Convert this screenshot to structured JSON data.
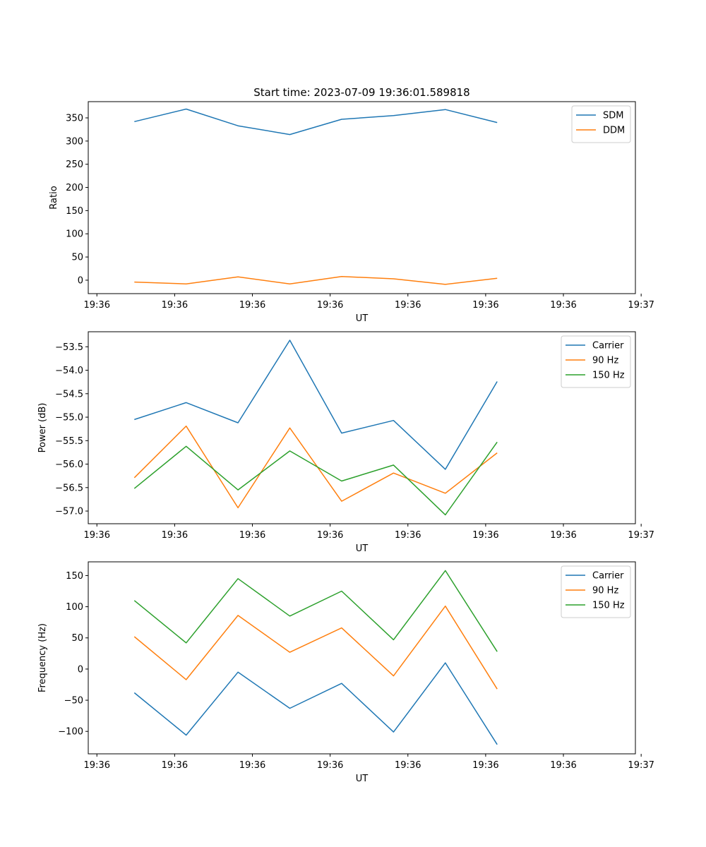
{
  "chart_data": [
    {
      "type": "line",
      "title": "Start time: 2023-07-09 19:36:01.589818",
      "xlabel": "UT",
      "ylabel": "Ratio",
      "x_tick_labels": [
        "19:36",
        "19:36",
        "19:36",
        "19:36",
        "19:36",
        "19:36",
        "19:36",
        "19:37"
      ],
      "y_ticks": [
        0,
        50,
        100,
        150,
        200,
        250,
        300,
        350
      ],
      "y_tick_labels": [
        "0",
        "50",
        "100",
        "150",
        "200",
        "250",
        "300",
        "350"
      ],
      "ylim": [
        -29,
        385
      ],
      "xlim": [
        0,
        9.5
      ],
      "x_ticks": [
        0.15,
        1.5,
        2.85,
        4.2,
        5.55,
        6.9,
        8.25,
        9.6
      ],
      "x": [
        0.8,
        1.7,
        2.6,
        3.5,
        4.4,
        5.3,
        6.2,
        7.1
      ],
      "legend_position": "top-right",
      "series": [
        {
          "name": "SDM",
          "color": "#1f77b4",
          "values": [
            342,
            369,
            333,
            314,
            347,
            355,
            368,
            340
          ]
        },
        {
          "name": "DDM",
          "color": "#ff7f0e",
          "values": [
            -4,
            -8,
            7,
            -8,
            8,
            3,
            -9,
            4
          ]
        }
      ]
    },
    {
      "type": "line",
      "title": "",
      "xlabel": "UT",
      "ylabel": "Power (dB)",
      "x_tick_labels": [
        "19:36",
        "19:36",
        "19:36",
        "19:36",
        "19:36",
        "19:36",
        "19:36",
        "19:37"
      ],
      "y_ticks": [
        -57.0,
        -56.5,
        -56.0,
        -55.5,
        -55.0,
        -54.5,
        -54.0,
        -53.5
      ],
      "y_tick_labels": [
        "−57.0",
        "−56.5",
        "−56.0",
        "−55.5",
        "−55.0",
        "−54.5",
        "−54.0",
        "−53.5"
      ],
      "ylim": [
        -57.27,
        -53.18
      ],
      "xlim": [
        0,
        9.5
      ],
      "x_ticks": [
        0.15,
        1.5,
        2.85,
        4.2,
        5.55,
        6.9,
        8.25,
        9.6
      ],
      "x": [
        0.8,
        1.7,
        2.6,
        3.5,
        4.4,
        5.3,
        6.2,
        7.1
      ],
      "legend_position": "top-right",
      "series": [
        {
          "name": "Carrier",
          "color": "#1f77b4",
          "values": [
            -55.05,
            -54.69,
            -55.12,
            -53.36,
            -55.34,
            -55.07,
            -56.11,
            -54.24
          ]
        },
        {
          "name": "90 Hz",
          "color": "#ff7f0e",
          "values": [
            -56.29,
            -55.19,
            -56.93,
            -55.23,
            -56.79,
            -56.19,
            -56.62,
            -55.76
          ]
        },
        {
          "name": "150 Hz",
          "color": "#2ca02c",
          "values": [
            -56.52,
            -55.62,
            -56.55,
            -55.72,
            -56.36,
            -56.02,
            -57.08,
            -55.53
          ]
        }
      ]
    },
    {
      "type": "line",
      "title": "",
      "xlabel": "UT",
      "ylabel": "Frequency (Hz)",
      "x_tick_labels": [
        "19:36",
        "19:36",
        "19:36",
        "19:36",
        "19:36",
        "19:36",
        "19:36",
        "19:37"
      ],
      "y_ticks": [
        -100,
        -50,
        0,
        50,
        100,
        150
      ],
      "y_tick_labels": [
        "−100",
        "−50",
        "0",
        "50",
        "100",
        "150"
      ],
      "ylim": [
        -136,
        172
      ],
      "xlim": [
        0,
        9.5
      ],
      "x_ticks": [
        0.15,
        1.5,
        2.85,
        4.2,
        5.55,
        6.9,
        8.25,
        9.6
      ],
      "x": [
        0.8,
        1.7,
        2.6,
        3.5,
        4.4,
        5.3,
        6.2,
        7.1
      ],
      "legend_position": "top-right",
      "series": [
        {
          "name": "Carrier",
          "color": "#1f77b4",
          "values": [
            -38,
            -106,
            -5,
            -63,
            -23,
            -101,
            10,
            -121
          ]
        },
        {
          "name": "90 Hz",
          "color": "#ff7f0e",
          "values": [
            52,
            -17,
            86,
            27,
            66,
            -11,
            101,
            -32
          ]
        },
        {
          "name": "150 Hz",
          "color": "#2ca02c",
          "values": [
            110,
            42,
            145,
            85,
            125,
            47,
            158,
            28
          ]
        }
      ]
    }
  ]
}
